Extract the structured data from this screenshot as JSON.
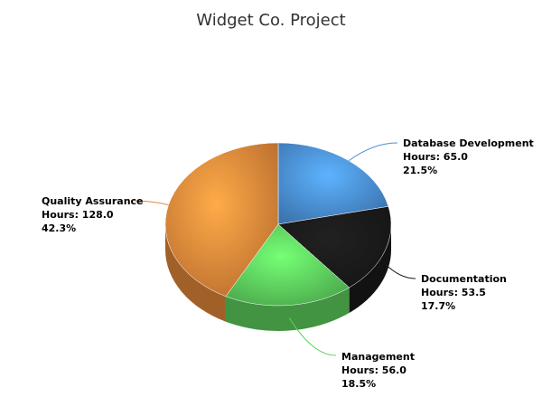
{
  "chart_data": {
    "type": "pie",
    "title": "Widget Co. Project",
    "series": [
      {
        "name": "",
        "data": [
          {
            "label": "Database Development",
            "value": 65.0,
            "value_text": "Hours: 65.0",
            "percent": 21.5,
            "percent_text": "21.5%",
            "color": "#4a8fd8"
          },
          {
            "label": "Documentation",
            "value": 53.5,
            "value_text": "Hours: 53.5",
            "percent": 17.7,
            "percent_text": "17.7%",
            "color": "#1a1a1a"
          },
          {
            "label": "Management",
            "value": 56.0,
            "value_text": "Hours: 56.0",
            "percent": 18.5,
            "percent_text": "18.5%",
            "color": "#5ed25e"
          },
          {
            "label": "Quality Assurance",
            "value": 128.0,
            "value_text": "Hours: 128.0",
            "percent": 42.3,
            "percent_text": "42.3%",
            "color": "#e8893a"
          }
        ]
      }
    ],
    "legend": "none",
    "style": "3d"
  }
}
